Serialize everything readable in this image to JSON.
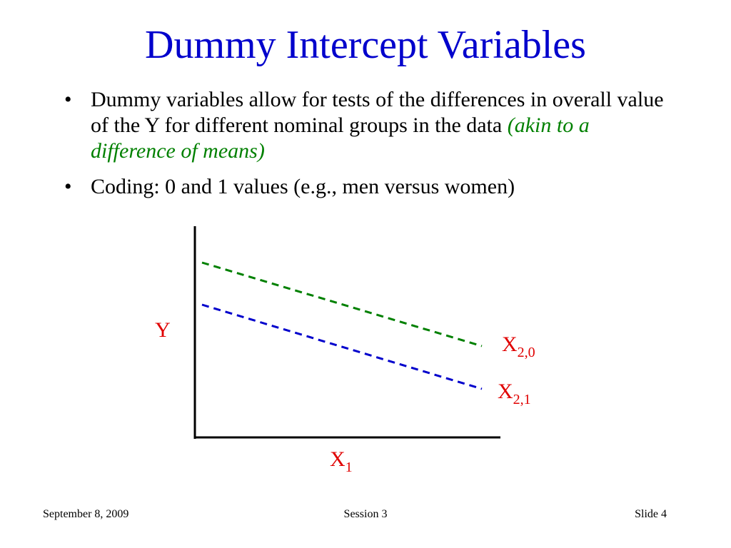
{
  "title": "Dummy Intercept Variables",
  "bullets": [
    {
      "text": "Dummy variables allow for tests of the differences in overall value of the Y for different nominal groups in the data",
      "emphasis": "(akin to a difference of means)"
    },
    {
      "text": "Coding: 0 and 1 values (e.g., men versus women)"
    }
  ],
  "diagram": {
    "y_label": "Y",
    "x_label": {
      "base": "X",
      "sub": "1"
    },
    "lines": [
      {
        "base": "X",
        "sub": "2,0"
      },
      {
        "base": "X",
        "sub": "2,1"
      }
    ]
  },
  "footer": {
    "date": "September 8, 2009",
    "session": "Session 3",
    "slide": "Slide 4"
  }
}
